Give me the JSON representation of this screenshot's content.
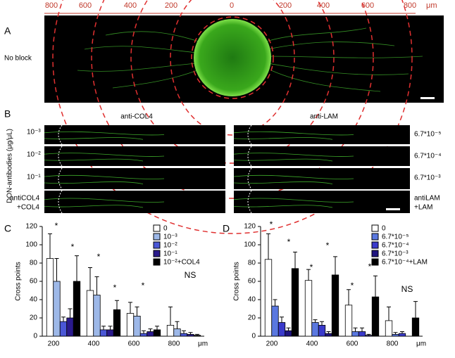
{
  "panel_a": {
    "label": "A",
    "row_label": "No block",
    "scale_labels": [
      "800",
      "600",
      "400",
      "200",
      "0",
      "200",
      "400",
      "600",
      "800"
    ],
    "scale_unit": "μm"
  },
  "panel_b": {
    "label": "B",
    "axis_title": "DON-antibodies (μg/μL)",
    "columns": [
      "anti-COL4",
      "anti-LAM"
    ],
    "left_rows": [
      "10⁻³",
      "10⁻²",
      "10⁻¹"
    ],
    "left_control": [
      "antiCOL4",
      "+COL4"
    ],
    "right_rows": [
      "6.7*10⁻⁵",
      "6.7*10⁻⁴",
      "6.7*10⁻³"
    ],
    "right_control": [
      "antiLAM",
      "+LAM"
    ]
  },
  "chart_data": [
    {
      "type": "bar",
      "panel_label": "C",
      "ylabel": "Cross points",
      "categories": [
        "200",
        "400",
        "600",
        "800"
      ],
      "x_unit": "μm",
      "ylim": [
        0,
        120
      ],
      "yticks": [
        0,
        20,
        40,
        60,
        80,
        100,
        120
      ],
      "series": [
        {
          "name": "0",
          "color": "#ffffff",
          "values": [
            85,
            50,
            25,
            12
          ],
          "errors": [
            27,
            25,
            12,
            20
          ]
        },
        {
          "name": "10⁻³",
          "color": "#9db8e8",
          "values": [
            60,
            45,
            22,
            8
          ],
          "errors": [
            25,
            20,
            10,
            8
          ]
        },
        {
          "name": "10⁻²",
          "color": "#4a57d6",
          "values": [
            16,
            7,
            3,
            3
          ],
          "errors": [
            5,
            4,
            3,
            3
          ]
        },
        {
          "name": "10⁻¹",
          "color": "#2a1a8c",
          "values": [
            20,
            7,
            5,
            2
          ],
          "errors": [
            10,
            4,
            3,
            2
          ]
        },
        {
          "name": "10⁻²+COL4",
          "color": "#000000",
          "values": [
            60,
            29,
            7,
            1
          ],
          "errors": [
            28,
            10,
            4,
            1
          ]
        }
      ],
      "annotations": [
        "*",
        "*",
        "*",
        "*",
        "*",
        "NS"
      ]
    },
    {
      "type": "bar",
      "panel_label": "D",
      "ylabel": "Cross points",
      "categories": [
        "200",
        "400",
        "600",
        "800"
      ],
      "x_unit": "μm",
      "ylim": [
        0,
        120
      ],
      "yticks": [
        0,
        20,
        40,
        60,
        80,
        100,
        120
      ],
      "series": [
        {
          "name": "0",
          "color": "#ffffff",
          "values": [
            84,
            61,
            34,
            17
          ],
          "errors": [
            28,
            12,
            17,
            15
          ]
        },
        {
          "name": "6.7*10⁻⁵",
          "color": "#5a78e0",
          "values": [
            33,
            15,
            5,
            2
          ],
          "errors": [
            7,
            3,
            4,
            2
          ]
        },
        {
          "name": "6.7*10⁻⁴",
          "color": "#3a3acb",
          "values": [
            15,
            12,
            5,
            3
          ],
          "errors": [
            6,
            4,
            4,
            2
          ]
        },
        {
          "name": "6.7*10⁻³",
          "color": "#1f1480",
          "values": [
            6,
            3,
            1,
            0
          ],
          "errors": [
            3,
            2,
            1,
            0
          ]
        },
        {
          "name": "6.7*10⁻⁴+LAM",
          "color": "#000000",
          "values": [
            74,
            67,
            43,
            20
          ],
          "errors": [
            18,
            20,
            23,
            18
          ]
        }
      ],
      "annotations": [
        "*",
        "*",
        "*",
        "*",
        "*",
        "*",
        "NS"
      ]
    }
  ]
}
